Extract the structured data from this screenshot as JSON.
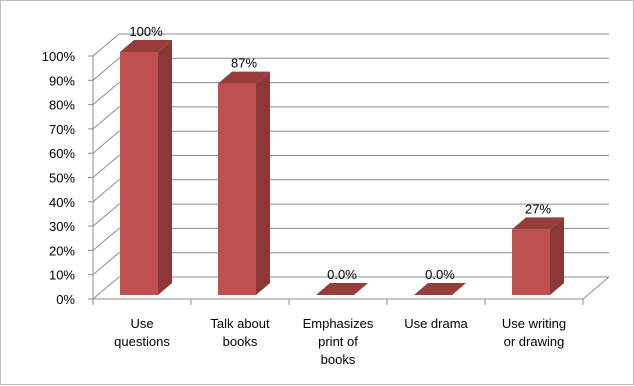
{
  "chart_data": {
    "type": "bar",
    "categories": [
      [
        "Use",
        "questions"
      ],
      [
        "Talk about",
        "books"
      ],
      [
        "Emphasizes",
        "print of",
        "books"
      ],
      [
        "Use drama"
      ],
      [
        "Use writing",
        "or drawing"
      ]
    ],
    "values": [
      100,
      87,
      0,
      0,
      27
    ],
    "data_labels": [
      "100%",
      "87%",
      "0.0%",
      "0.0%",
      "27%"
    ],
    "ylim": [
      0,
      100
    ],
    "y_ticks": [
      "0%",
      "10%",
      "20%",
      "30%",
      "40%",
      "50%",
      "60%",
      "70%",
      "80%",
      "90%",
      "100%"
    ],
    "grid": true,
    "colors": {
      "bar_front": "#c0504d",
      "bar_side": "#8c3836",
      "bar_top": "#963c3a",
      "grid": "#8c8c8c"
    }
  }
}
